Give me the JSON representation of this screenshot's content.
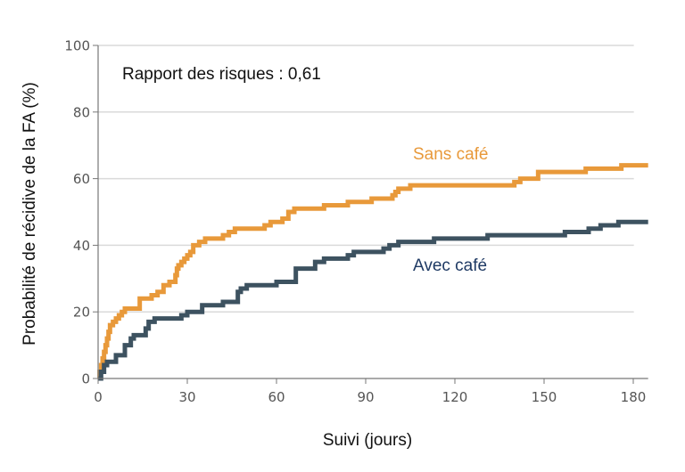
{
  "chart_data": {
    "type": "line",
    "subtype": "step (Kaplan-Meier cumulative incidence)",
    "title": "",
    "xlabel": "Suivi (jours)",
    "ylabel": "Probabilité de récidive de la FA (%)",
    "xlim": [
      0,
      185
    ],
    "ylim": [
      0,
      100
    ],
    "xticks": [
      0,
      30,
      60,
      90,
      120,
      150,
      180
    ],
    "yticks": [
      0,
      20,
      40,
      60,
      80,
      100
    ],
    "grid": "horizontal",
    "annotations": [
      {
        "text": "Rapport des risques : 0,61",
        "x": 8,
        "y": 92
      }
    ],
    "series": [
      {
        "name": "Sans café",
        "color": "#E8993A",
        "label_pos": {
          "x": 130,
          "y": 67
        },
        "points": [
          [
            0,
            0
          ],
          [
            0.5,
            2
          ],
          [
            1,
            4
          ],
          [
            1.5,
            6
          ],
          [
            2,
            8
          ],
          [
            2.5,
            10
          ],
          [
            3,
            12
          ],
          [
            3.5,
            14
          ],
          [
            4,
            16
          ],
          [
            5,
            17
          ],
          [
            6,
            18
          ],
          [
            7,
            19
          ],
          [
            8,
            20
          ],
          [
            9,
            21
          ],
          [
            13,
            21
          ],
          [
            14,
            24
          ],
          [
            16,
            24
          ],
          [
            18,
            25
          ],
          [
            20,
            26
          ],
          [
            22,
            28
          ],
          [
            24,
            29
          ],
          [
            26,
            31
          ],
          [
            26.5,
            33
          ],
          [
            27,
            34
          ],
          [
            28,
            35
          ],
          [
            29,
            36
          ],
          [
            30,
            37
          ],
          [
            31,
            38
          ],
          [
            32,
            40
          ],
          [
            34,
            41
          ],
          [
            36,
            42
          ],
          [
            40,
            42
          ],
          [
            42,
            43
          ],
          [
            44,
            44
          ],
          [
            46,
            45
          ],
          [
            54,
            45
          ],
          [
            56,
            46
          ],
          [
            58,
            47
          ],
          [
            62,
            48
          ],
          [
            64,
            50
          ],
          [
            66,
            51
          ],
          [
            74,
            51
          ],
          [
            76,
            52
          ],
          [
            82,
            52
          ],
          [
            84,
            53
          ],
          [
            90,
            53
          ],
          [
            92,
            54
          ],
          [
            98,
            54
          ],
          [
            99,
            55
          ],
          [
            100,
            56
          ],
          [
            101,
            57
          ],
          [
            105,
            58
          ],
          [
            138,
            58
          ],
          [
            140,
            59
          ],
          [
            142,
            60
          ],
          [
            146,
            60
          ],
          [
            148,
            62
          ],
          [
            162,
            62
          ],
          [
            164,
            63
          ],
          [
            175,
            63
          ],
          [
            176,
            64
          ],
          [
            185,
            64
          ]
        ]
      },
      {
        "name": "Avec café",
        "color": "#3D5260",
        "label_pos": {
          "x": 106,
          "y": 34
        },
        "points": [
          [
            0,
            0
          ],
          [
            1,
            2
          ],
          [
            2,
            4
          ],
          [
            3,
            5
          ],
          [
            5,
            5
          ],
          [
            6,
            7
          ],
          [
            8,
            7
          ],
          [
            9,
            10
          ],
          [
            11,
            12
          ],
          [
            12,
            13
          ],
          [
            15,
            13
          ],
          [
            16,
            15
          ],
          [
            17,
            17
          ],
          [
            19,
            18
          ],
          [
            26,
            18
          ],
          [
            28,
            19
          ],
          [
            30,
            20
          ],
          [
            34,
            20
          ],
          [
            35,
            22
          ],
          [
            40,
            22
          ],
          [
            42,
            23
          ],
          [
            46,
            23
          ],
          [
            47,
            26
          ],
          [
            48,
            27
          ],
          [
            50,
            28
          ],
          [
            58,
            28
          ],
          [
            60,
            29
          ],
          [
            66,
            29
          ],
          [
            66.5,
            33
          ],
          [
            72,
            33
          ],
          [
            73,
            35
          ],
          [
            76,
            36
          ],
          [
            82,
            36
          ],
          [
            84,
            37
          ],
          [
            86,
            38
          ],
          [
            94,
            38
          ],
          [
            96,
            39
          ],
          [
            98,
            40
          ],
          [
            100,
            40
          ],
          [
            101,
            41
          ],
          [
            112,
            41
          ],
          [
            113,
            42
          ],
          [
            130,
            42
          ],
          [
            131,
            43
          ],
          [
            156,
            43
          ],
          [
            157,
            44
          ],
          [
            164,
            44
          ],
          [
            165,
            45
          ],
          [
            169,
            46
          ],
          [
            174,
            46
          ],
          [
            175,
            47
          ],
          [
            185,
            47
          ]
        ]
      }
    ]
  },
  "labels": {
    "annotation": "Rapport des risques : 0,61",
    "xlabel": "Suivi (jours)",
    "ylabel": "Probabilité de récidive de la FA (%)",
    "series_sans": "Sans café",
    "series_avec": "Avec café"
  }
}
